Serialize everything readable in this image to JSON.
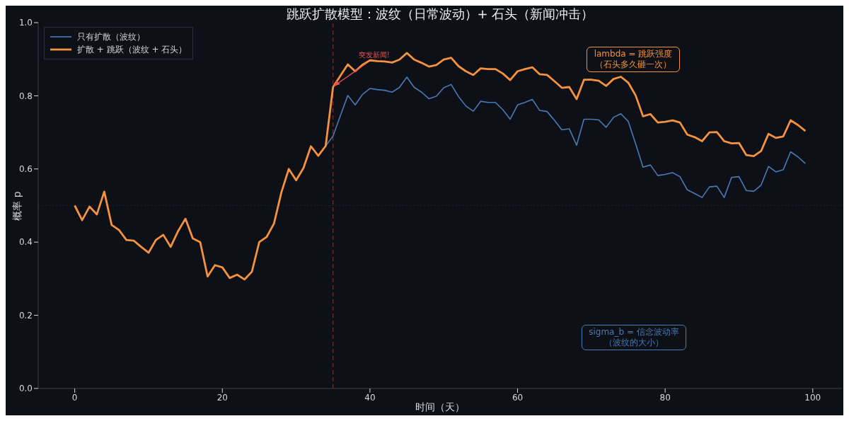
{
  "chart_data": {
    "type": "line",
    "title": "跳跃扩散模型：波纹（日常波动）+ 石头（新闻冲击）",
    "xlabel": "时间（天）",
    "ylabel": "概率 p",
    "x": [
      0,
      1,
      2,
      3,
      4,
      5,
      6,
      7,
      8,
      9,
      10,
      11,
      12,
      13,
      14,
      15,
      16,
      17,
      18,
      19,
      20,
      21,
      22,
      23,
      24,
      25,
      26,
      27,
      28,
      29,
      30,
      31,
      32,
      33,
      34,
      35,
      36,
      37,
      38,
      39,
      40,
      41,
      42,
      43,
      44,
      45,
      46,
      47,
      48,
      49,
      50,
      51,
      52,
      53,
      54,
      55,
      56,
      57,
      58,
      59,
      60,
      61,
      62,
      63,
      64,
      65,
      66,
      67,
      68,
      69,
      70,
      71,
      72,
      73,
      74,
      75,
      76,
      77,
      78,
      79,
      80,
      81,
      82,
      83,
      84,
      85,
      86,
      87,
      88,
      89,
      90,
      91,
      92,
      93,
      94,
      95,
      96,
      97,
      98,
      99
    ],
    "series": [
      {
        "name": "只有扩散（波纹）",
        "color": "#4a7ab5",
        "values": [
          null,
          null,
          null,
          null,
          null,
          null,
          null,
          null,
          null,
          null,
          null,
          null,
          null,
          null,
          null,
          null,
          null,
          null,
          null,
          null,
          null,
          null,
          null,
          null,
          null,
          null,
          null,
          null,
          null,
          null,
          null,
          null,
          null,
          null,
          0.663,
          0.69,
          0.746,
          0.801,
          0.775,
          0.804,
          0.82,
          0.817,
          0.815,
          0.81,
          0.823,
          0.851,
          0.823,
          0.81,
          0.792,
          0.799,
          0.822,
          0.831,
          0.798,
          0.772,
          0.758,
          0.785,
          0.782,
          0.782,
          0.762,
          0.736,
          0.775,
          0.782,
          0.79,
          0.76,
          0.757,
          0.733,
          0.707,
          0.71,
          0.665,
          0.736,
          0.736,
          0.734,
          0.714,
          0.741,
          0.751,
          0.73,
          0.669,
          0.605,
          0.611,
          0.582,
          0.585,
          0.59,
          0.579,
          0.543,
          0.533,
          0.522,
          0.551,
          0.553,
          0.522,
          0.577,
          0.579,
          0.541,
          0.539,
          0.556,
          0.607,
          0.592,
          0.598,
          0.647,
          0.633,
          0.615
        ]
      },
      {
        "name": "扩散 + 跳跃（波纹 + 石头）",
        "color": "#f5923e",
        "values": [
          0.5,
          0.46,
          0.497,
          0.476,
          0.538,
          0.447,
          0.433,
          0.406,
          0.404,
          0.387,
          0.371,
          0.406,
          0.42,
          0.387,
          0.43,
          0.464,
          0.41,
          0.4,
          0.306,
          0.337,
          0.331,
          0.302,
          0.311,
          0.298,
          0.319,
          0.4,
          0.414,
          0.451,
          0.536,
          0.6,
          0.569,
          0.603,
          0.662,
          0.636,
          0.663,
          0.824,
          0.855,
          0.886,
          0.867,
          0.885,
          0.897,
          0.895,
          0.894,
          0.891,
          0.899,
          0.917,
          0.899,
          0.89,
          0.88,
          0.884,
          0.899,
          0.904,
          0.881,
          0.867,
          0.857,
          0.875,
          0.873,
          0.873,
          0.861,
          0.843,
          0.867,
          0.873,
          0.878,
          0.859,
          0.857,
          0.84,
          0.822,
          0.824,
          0.791,
          0.844,
          0.844,
          0.841,
          0.827,
          0.846,
          0.852,
          0.836,
          0.801,
          0.744,
          0.75,
          0.727,
          0.729,
          0.733,
          0.727,
          0.694,
          0.687,
          0.676,
          0.7,
          0.701,
          0.676,
          0.67,
          0.671,
          0.638,
          0.635,
          0.649,
          0.696,
          0.685,
          0.689,
          0.733,
          0.72,
          0.704
        ]
      }
    ],
    "xlim": [
      -4.95,
      103.95
    ],
    "xticks": [
      0,
      20,
      40,
      60,
      80,
      100
    ],
    "ylim": [
      0,
      1
    ],
    "yticks": [
      {
        "value": 0,
        "label": "0.0"
      },
      {
        "value": 0.2,
        "label": "0.2"
      },
      {
        "value": 0.4,
        "label": "0.4"
      },
      {
        "value": 0.6,
        "label": "0.6"
      },
      {
        "value": 0.8,
        "label": "0.8"
      },
      {
        "value": 1,
        "label": "1.0"
      }
    ],
    "ref_lines": [
      {
        "axis": "x",
        "value": 35,
        "color": "#8a3a33",
        "line_style": "dashed"
      },
      {
        "axis": "y",
        "value": 0.5,
        "color": "#1e232b",
        "line_style": "dotted"
      }
    ],
    "annotations": [
      {
        "text": "突发新闻!",
        "x": 35,
        "y": 0.824
      },
      "lambda = 跳跃强度（石头多久砸一次）",
      "sigma_b = 信念波动率（波纹的大小）"
    ],
    "grid": false,
    "legend": "top left",
    "marker": "none",
    "line_style": "solid"
  }
}
